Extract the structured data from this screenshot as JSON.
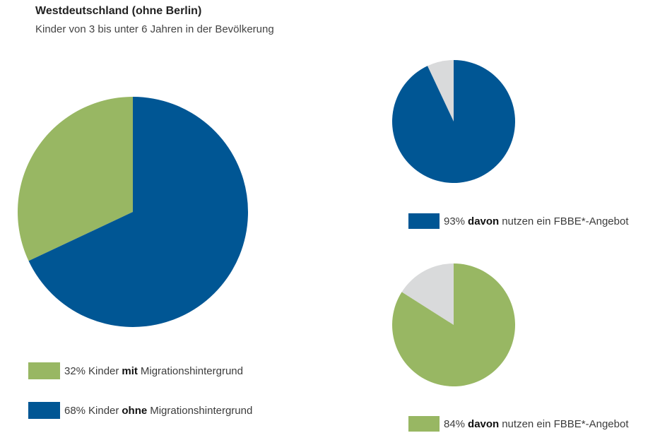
{
  "chart_data": [
    {
      "type": "pie",
      "title": "Westdeutschland (ohne Berlin)",
      "subtitle": "Kinder von 3 bis unter 6 Jahren in der Bevölkerung",
      "values": [
        32,
        68
      ],
      "value_labels": [
        "32%",
        "68%"
      ],
      "colors": [
        "#98b763",
        "#005694"
      ],
      "labels": [
        [
          "Kinder",
          "mit",
          "Migrationshintergrund"
        ],
        [
          "Kinder",
          "ohne",
          "Migrationshintergrund"
        ]
      ],
      "bold": [
        1,
        1
      ]
    },
    {
      "type": "pie",
      "values": [
        7,
        93
      ],
      "value_labels": [
        null,
        "93%"
      ],
      "colors": [
        "#d9dadb",
        "#005694"
      ],
      "labels": [
        null,
        [
          "davon",
          "nutzen ein FBBE*-Angebot"
        ]
      ],
      "bold": [
        null,
        0
      ]
    },
    {
      "type": "pie",
      "values": [
        16,
        84
      ],
      "value_labels": [
        null,
        "84%"
      ],
      "colors": [
        "#d9dadb",
        "#98b763"
      ],
      "labels": [
        null,
        [
          "davon",
          "nutzen ein FBBE*-Angebot"
        ]
      ],
      "bold": [
        null,
        0
      ]
    }
  ]
}
